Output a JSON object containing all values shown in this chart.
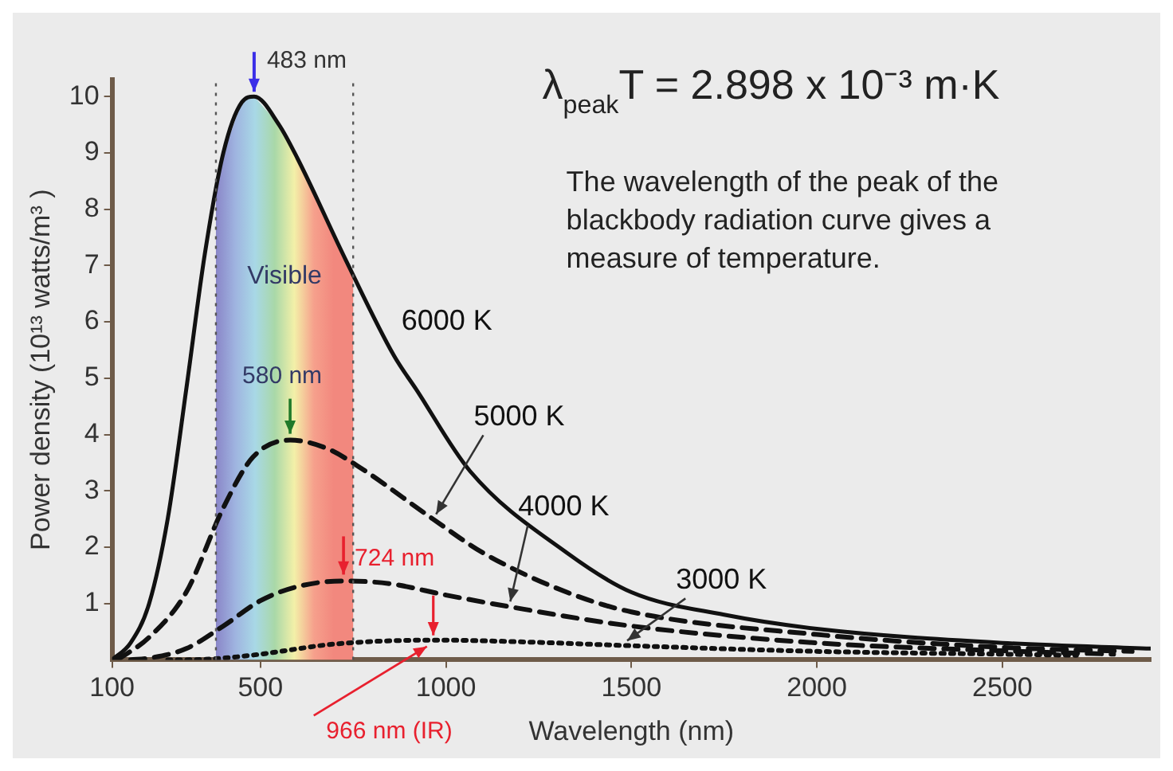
{
  "chart_data": {
    "type": "line",
    "xlabel": "Wavelength (nm)",
    "ylabel": "Power density (10¹³ watts/m³ )",
    "xlim": [
      100,
      2900
    ],
    "xticks": [
      100,
      500,
      1000,
      1500,
      2000,
      2500
    ],
    "ylim": [
      0,
      10.3
    ],
    "yticks": [
      1,
      2,
      3,
      4,
      5,
      6,
      7,
      8,
      9,
      10
    ],
    "grid": false,
    "legend": false,
    "marker": "none",
    "series": [
      {
        "name": "6000 K",
        "type": "line",
        "color": "#111111",
        "line_style": "solid",
        "x": [
          100,
          150,
          200,
          250,
          300,
          350,
          400,
          450,
          483,
          550,
          600,
          730,
          860,
          920,
          1065,
          1326,
          1500,
          1750,
          2000,
          2500,
          2900
        ],
        "values": [
          0,
          0.3,
          1.0,
          2.5,
          4.8,
          7.2,
          9.0,
          9.9,
          10,
          9.5,
          8.9,
          7.1,
          5.4,
          4.8,
          3.35,
          1.9,
          1.2,
          0.8,
          0.55,
          0.3,
          0.2
        ]
      },
      {
        "name": "5000 K",
        "type": "line",
        "color": "#111111",
        "line_style": "dashed",
        "x": [
          115,
          200,
          300,
          400,
          480,
          580,
          680,
          760,
          965,
          1100,
          1326,
          1500,
          2000,
          2500,
          2850
        ],
        "values": [
          0,
          0.4,
          1.2,
          2.7,
          3.6,
          3.9,
          3.75,
          3.45,
          2.5,
          1.9,
          1.2,
          0.85,
          0.45,
          0.22,
          0.15
        ]
      },
      {
        "name": "4000 K",
        "type": "line",
        "color": "#111111",
        "line_style": "dashed",
        "x": [
          150,
          200,
          300,
          400,
          500,
          600,
          724,
          850,
          1000,
          1165,
          1500,
          2000,
          2500,
          2800
        ],
        "values": [
          0,
          0.03,
          0.2,
          0.6,
          1.05,
          1.3,
          1.4,
          1.35,
          1.15,
          0.95,
          0.6,
          0.3,
          0.16,
          0.1
        ]
      },
      {
        "name": "3000 K",
        "type": "line",
        "color": "#111111",
        "line_style": "dotted",
        "x": [
          250,
          300,
          400,
          500,
          700,
          966,
          1200,
          1500,
          2000,
          2500,
          2700
        ],
        "values": [
          0,
          0,
          0.03,
          0.1,
          0.28,
          0.35,
          0.32,
          0.25,
          0.15,
          0.1,
          0.08
        ]
      }
    ],
    "bands": [
      {
        "axis": "x",
        "from": 380,
        "to": 750,
        "label": "Visible"
      }
    ],
    "ref_lines": [
      {
        "axis": "x",
        "value": 380,
        "line_style": "dotted",
        "color": "#555555"
      },
      {
        "axis": "x",
        "value": 750,
        "line_style": "dotted",
        "color": "#555555"
      }
    ],
    "annotations": [
      {
        "text": "483 nm",
        "x": 483,
        "y": 10
      },
      {
        "text": "580 nm",
        "x": 580,
        "y": 3.9
      },
      {
        "text": "724 nm",
        "x": 724,
        "y": 1.4
      },
      {
        "text": "966 nm (IR)",
        "x": 966,
        "y": 0.35
      },
      "λ$_{peak}$T = 2.898 x 10⁻³ m·K",
      "The wavelength of the peak of the blackbody radiation curve gives a measure of temperature."
    ]
  }
}
